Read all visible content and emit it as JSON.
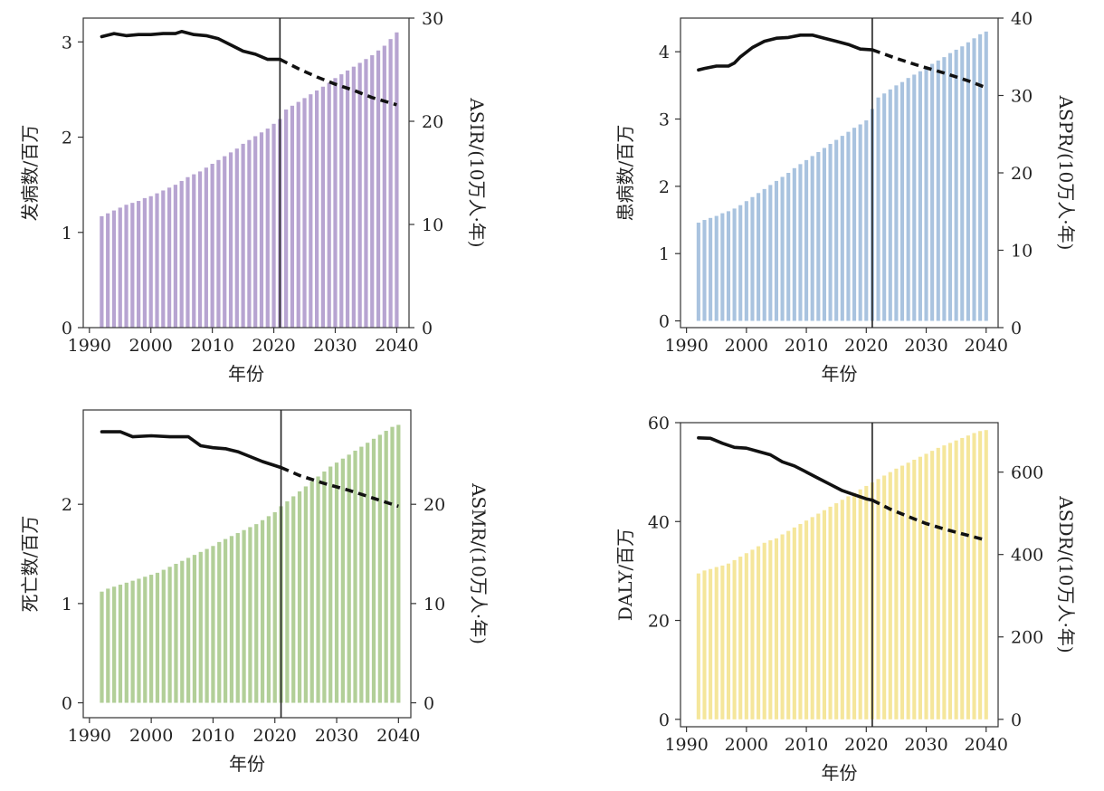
{
  "chart_data": [
    {
      "type": "bar",
      "bar_color": "#b7a4d1",
      "categories": [
        1992,
        1993,
        1994,
        1995,
        1996,
        1997,
        1998,
        1999,
        2000,
        2001,
        2002,
        2003,
        2004,
        2005,
        2006,
        2007,
        2008,
        2009,
        2010,
        2011,
        2012,
        2013,
        2014,
        2015,
        2016,
        2017,
        2018,
        2019,
        2020,
        2021,
        2022,
        2023,
        2024,
        2025,
        2026,
        2027,
        2028,
        2029,
        2030,
        2031,
        2032,
        2033,
        2034,
        2035,
        2036,
        2037,
        2038,
        2039,
        2040
      ],
      "values": [
        1.17,
        1.2,
        1.23,
        1.26,
        1.29,
        1.31,
        1.33,
        1.36,
        1.38,
        1.41,
        1.44,
        1.47,
        1.5,
        1.54,
        1.58,
        1.61,
        1.64,
        1.68,
        1.72,
        1.76,
        1.8,
        1.84,
        1.88,
        1.93,
        1.97,
        2.01,
        2.05,
        2.09,
        2.14,
        2.19,
        2.29,
        2.33,
        2.37,
        2.41,
        2.45,
        2.49,
        2.53,
        2.57,
        2.62,
        2.66,
        2.7,
        2.74,
        2.78,
        2.82,
        2.86,
        2.91,
        2.96,
        3.03,
        3.1
      ],
      "ylabel": "发病数/百万",
      "y2label": "ASIR/(10万人·年)",
      "xlabel": "年份",
      "ylim": [
        0,
        3.25
      ],
      "yticks": [
        0,
        1,
        2,
        3
      ],
      "y2lim": [
        0,
        30
      ],
      "y2ticks": [
        0,
        10,
        20,
        30
      ],
      "xlim": [
        1989,
        2042
      ],
      "xticks": [
        1990,
        2000,
        2010,
        2020,
        2030,
        2040
      ],
      "divider_year": 2021,
      "rate_series": {
        "name": "ASIR",
        "observed": {
          "x": [
            1992,
            1994,
            1996,
            1998,
            2000,
            2002,
            2004,
            2005,
            2007,
            2009,
            2011,
            2013,
            2015,
            2017,
            2019,
            2021
          ],
          "y": [
            28.2,
            28.5,
            28.3,
            28.4,
            28.4,
            28.5,
            28.5,
            28.7,
            28.4,
            28.3,
            28.0,
            27.4,
            26.8,
            26.5,
            26.0,
            26.0
          ]
        },
        "projected": {
          "x": [
            2021,
            2024,
            2027,
            2030,
            2033,
            2036,
            2040
          ],
          "y": [
            26.0,
            25.1,
            24.3,
            23.6,
            23.0,
            22.3,
            21.6
          ]
        }
      }
    },
    {
      "type": "bar",
      "bar_color": "#a9c3df",
      "categories": [
        1992,
        1993,
        1994,
        1995,
        1996,
        1997,
        1998,
        1999,
        2000,
        2001,
        2002,
        2003,
        2004,
        2005,
        2006,
        2007,
        2008,
        2009,
        2010,
        2011,
        2012,
        2013,
        2014,
        2015,
        2016,
        2017,
        2018,
        2019,
        2020,
        2021,
        2022,
        2023,
        2024,
        2025,
        2026,
        2027,
        2028,
        2029,
        2030,
        2031,
        2032,
        2033,
        2034,
        2035,
        2036,
        2037,
        2038,
        2039,
        2040
      ],
      "values": [
        1.46,
        1.5,
        1.53,
        1.56,
        1.6,
        1.63,
        1.67,
        1.72,
        1.78,
        1.84,
        1.9,
        1.96,
        2.02,
        2.08,
        2.14,
        2.2,
        2.27,
        2.33,
        2.39,
        2.45,
        2.51,
        2.57,
        2.63,
        2.69,
        2.75,
        2.81,
        2.87,
        2.92,
        2.98,
        3.15,
        3.32,
        3.38,
        3.44,
        3.5,
        3.55,
        3.61,
        3.66,
        3.71,
        3.76,
        3.82,
        3.87,
        3.92,
        3.98,
        4.03,
        4.08,
        4.14,
        4.2,
        4.26,
        4.3
      ],
      "ylabel": "患病数/百万",
      "y2label": "ASPR/(10万人·年)",
      "xlabel": "年份",
      "ylim": [
        -0.1,
        4.5
      ],
      "yticks": [
        0,
        1,
        2,
        3,
        4
      ],
      "y2lim": [
        0,
        40
      ],
      "y2ticks": [
        0,
        10,
        20,
        30,
        40
      ],
      "xlim": [
        1989,
        2042
      ],
      "xticks": [
        1990,
        2000,
        2010,
        2020,
        2030,
        2040
      ],
      "divider_year": 2021,
      "rate_series": {
        "name": "ASPR",
        "observed": {
          "x": [
            1992,
            1993,
            1995,
            1997,
            1998,
            1999,
            2001,
            2003,
            2005,
            2007,
            2009,
            2011,
            2013,
            2015,
            2017,
            2019,
            2021
          ],
          "y": [
            33.3,
            33.5,
            33.8,
            33.8,
            34.2,
            35.0,
            36.2,
            37.0,
            37.4,
            37.5,
            37.8,
            37.8,
            37.4,
            37.0,
            36.6,
            36.0,
            35.9
          ]
        },
        "projected": {
          "x": [
            2021,
            2025,
            2029,
            2033,
            2037,
            2040
          ],
          "y": [
            35.9,
            34.8,
            33.8,
            32.9,
            31.9,
            31.0
          ]
        }
      }
    },
    {
      "type": "bar",
      "bar_color": "#b2cf98",
      "categories": [
        1992,
        1993,
        1994,
        1995,
        1996,
        1997,
        1998,
        1999,
        2000,
        2001,
        2002,
        2003,
        2004,
        2005,
        2006,
        2007,
        2008,
        2009,
        2010,
        2011,
        2012,
        2013,
        2014,
        2015,
        2016,
        2017,
        2018,
        2019,
        2020,
        2021,
        2022,
        2023,
        2024,
        2025,
        2026,
        2027,
        2028,
        2029,
        2030,
        2031,
        2032,
        2033,
        2034,
        2035,
        2036,
        2037,
        2038,
        2039,
        2040
      ],
      "values": [
        1.12,
        1.15,
        1.17,
        1.19,
        1.21,
        1.23,
        1.25,
        1.27,
        1.29,
        1.31,
        1.34,
        1.37,
        1.4,
        1.43,
        1.46,
        1.49,
        1.52,
        1.55,
        1.58,
        1.62,
        1.65,
        1.68,
        1.71,
        1.74,
        1.77,
        1.8,
        1.84,
        1.88,
        1.92,
        1.98,
        2.03,
        2.08,
        2.13,
        2.18,
        2.23,
        2.28,
        2.33,
        2.38,
        2.42,
        2.46,
        2.5,
        2.54,
        2.58,
        2.62,
        2.66,
        2.7,
        2.74,
        2.78,
        2.8
      ],
      "ylabel": "死亡数/百万",
      "y2label": "ASMR/(10万人·年)",
      "xlabel": "年份",
      "ylim": [
        -0.15,
        2.95
      ],
      "yticks": [
        0,
        1,
        2
      ],
      "y2lim": [
        -1.5,
        29.5
      ],
      "y2ticks": [
        0,
        10,
        20
      ],
      "xlim": [
        1989,
        2042
      ],
      "xticks": [
        1990,
        2000,
        2010,
        2020,
        2030,
        2040
      ],
      "divider_year": 2021,
      "rate_series": {
        "name": "ASMR",
        "observed": {
          "x": [
            1992,
            1995,
            1997,
            2000,
            2003,
            2006,
            2008,
            2010,
            2012,
            2014,
            2016,
            2018,
            2020,
            2021
          ],
          "y": [
            27.3,
            27.3,
            26.8,
            26.9,
            26.8,
            26.8,
            25.9,
            25.7,
            25.6,
            25.3,
            24.8,
            24.3,
            23.9,
            23.7
          ]
        },
        "projected": {
          "x": [
            2021,
            2024,
            2028,
            2032,
            2036,
            2040
          ],
          "y": [
            23.7,
            22.9,
            22.1,
            21.4,
            20.6,
            19.8
          ]
        }
      }
    },
    {
      "type": "bar",
      "bar_color": "#f5e69b",
      "categories": [
        1992,
        1993,
        1994,
        1995,
        1996,
        1997,
        1998,
        1999,
        2000,
        2001,
        2002,
        2003,
        2004,
        2005,
        2006,
        2007,
        2008,
        2009,
        2010,
        2011,
        2012,
        2013,
        2014,
        2015,
        2016,
        2017,
        2018,
        2019,
        2020,
        2021,
        2022,
        2023,
        2024,
        2025,
        2026,
        2027,
        2028,
        2029,
        2030,
        2031,
        2032,
        2033,
        2034,
        2035,
        2036,
        2037,
        2038,
        2039,
        2040
      ],
      "values": [
        29.5,
        30.1,
        30.4,
        30.8,
        31.1,
        31.5,
        32.2,
        32.9,
        33.6,
        34.3,
        35,
        35.7,
        36.2,
        36.6,
        37.4,
        38.1,
        38.8,
        39.5,
        40.2,
        40.9,
        41.6,
        42.3,
        43,
        43.7,
        44.4,
        45.1,
        45.8,
        46.5,
        47.2,
        47.9,
        48.6,
        49.3,
        50,
        50.7,
        51.3,
        51.9,
        52.5,
        53.1,
        53.7,
        54.3,
        54.9,
        55.4,
        55.9,
        56.4,
        56.9,
        57.4,
        57.9,
        58.3,
        58.5
      ],
      "ylabel": "DALY/百万",
      "y2label": "ASDR/(10万人·年)",
      "xlabel": "年份",
      "ylim": [
        -1.5,
        60
      ],
      "yticks": [
        0,
        20,
        40,
        60
      ],
      "y2lim": [
        -18,
        720
      ],
      "y2ticks": [
        0,
        200,
        400,
        600
      ],
      "xlim": [
        1989,
        2042
      ],
      "xticks": [
        1990,
        2000,
        2010,
        2020,
        2030,
        2040
      ],
      "divider_year": 2021,
      "rate_series": {
        "name": "ASDR",
        "observed": {
          "x": [
            1992,
            1994,
            1996,
            1998,
            2000,
            2002,
            2004,
            2006,
            2008,
            2010,
            2012,
            2014,
            2016,
            2018,
            2020,
            2021
          ],
          "y": [
            683,
            682,
            670,
            660,
            658,
            650,
            642,
            625,
            615,
            600,
            585,
            570,
            555,
            545,
            535,
            532
          ]
        },
        "projected": {
          "x": [
            2021,
            2024,
            2027,
            2030,
            2033,
            2036,
            2040
          ],
          "y": [
            532,
            510,
            492,
            475,
            462,
            450,
            435
          ]
        }
      }
    }
  ]
}
